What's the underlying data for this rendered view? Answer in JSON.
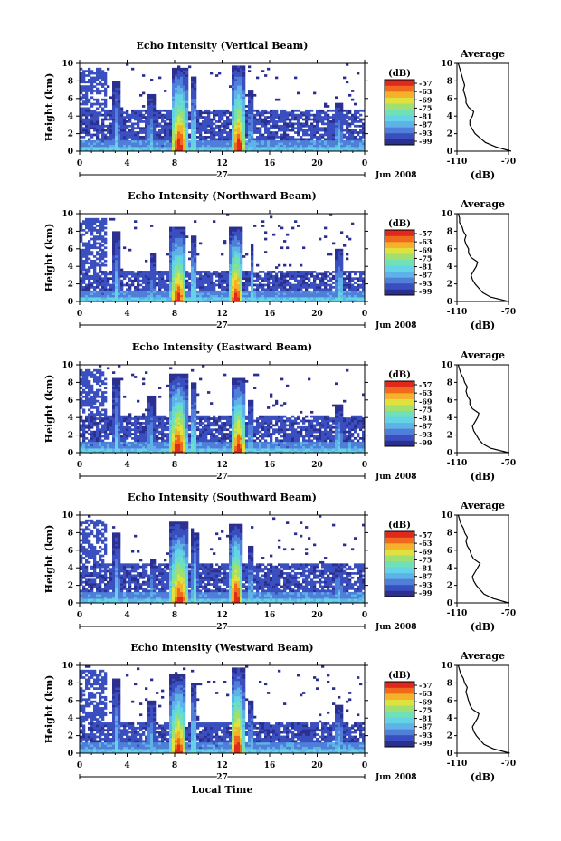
{
  "colors": {
    "colormap": [
      "#2b2f8f",
      "#3a4fbf",
      "#4f7fd8",
      "#5fb2e8",
      "#63d3e6",
      "#6fe0b8",
      "#9fe070",
      "#dfe23e",
      "#f6b12a",
      "#f06a1e",
      "#e0281c"
    ]
  },
  "shared": {
    "xlabel": "Local Time",
    "date_label": "Jun 2008",
    "day_label": "27",
    "colorbar_title": "(dB)",
    "average_title": "Average",
    "average_xlabel": "(dB)"
  },
  "chart_data": [
    {
      "type": "heatmap",
      "title": "Echo Intensity (Vertical Beam)",
      "ylabel": "Height (km)",
      "x_ticks": [
        "0",
        "4",
        "8",
        "12",
        "16",
        "20",
        "0"
      ],
      "y_ticks": [
        "0",
        "2",
        "4",
        "6",
        "8",
        "10"
      ],
      "xlim": [
        0,
        24
      ],
      "ylim": [
        0,
        10
      ],
      "colorbar_ticks": [
        "-57",
        "-63",
        "-69",
        "-75",
        "-81",
        "-87",
        "-93",
        "-99"
      ],
      "average_xticks": [
        "-110",
        "-70"
      ],
      "average_xlim": [
        -110,
        -70
      ],
      "average_profile": [
        [
          0,
          -68
        ],
        [
          0.5,
          -80
        ],
        [
          1,
          -88
        ],
        [
          1.5,
          -92
        ],
        [
          2,
          -96
        ],
        [
          2.5,
          -98
        ],
        [
          3,
          -100
        ],
        [
          3.5,
          -100
        ],
        [
          4,
          -98
        ],
        [
          4.5,
          -97
        ],
        [
          5,
          -101
        ],
        [
          5.5,
          -103
        ],
        [
          6,
          -103
        ],
        [
          6.5,
          -104
        ],
        [
          7,
          -105
        ],
        [
          7.5,
          -104
        ],
        [
          8,
          -105
        ],
        [
          8.5,
          -106
        ],
        [
          9,
          -107
        ],
        [
          9.5,
          -108
        ],
        [
          10,
          -109
        ]
      ],
      "background_band_top_km": 4.8,
      "cells": [
        {
          "center": 3.1,
          "width": 0.5,
          "top": 8.0,
          "peak": 0.4
        },
        {
          "center": 6.0,
          "width": 0.6,
          "top": 6.5,
          "peak": 0.35
        },
        {
          "center": 8.4,
          "width": 1.4,
          "top": 9.6,
          "peak": 1.0
        },
        {
          "center": 9.6,
          "width": 0.5,
          "top": 8.5,
          "peak": 0.5
        },
        {
          "center": 13.4,
          "width": 1.1,
          "top": 9.8,
          "peak": 1.0
        },
        {
          "center": 14.4,
          "width": 0.4,
          "top": 7.0,
          "peak": 0.4
        },
        {
          "center": 21.8,
          "width": 0.7,
          "top": 5.6,
          "peak": 0.4
        }
      ]
    },
    {
      "type": "heatmap",
      "title": "Echo Intensity (Northward Beam)",
      "ylabel": "Height (km)",
      "x_ticks": [
        "0",
        "4",
        "8",
        "12",
        "16",
        "20",
        "0"
      ],
      "y_ticks": [
        "0",
        "2",
        "4",
        "6",
        "8",
        "10"
      ],
      "xlim": [
        0,
        24
      ],
      "ylim": [
        0,
        10
      ],
      "colorbar_ticks": [
        "-57",
        "-63",
        "-69",
        "-75",
        "-81",
        "-87",
        "-93",
        "-99"
      ],
      "average_xticks": [
        "-110",
        "-70"
      ],
      "average_xlim": [
        -110,
        -70
      ],
      "average_profile": [
        [
          0,
          -70
        ],
        [
          0.5,
          -84
        ],
        [
          1,
          -90
        ],
        [
          1.5,
          -93
        ],
        [
          2,
          -96
        ],
        [
          2.5,
          -98
        ],
        [
          3,
          -99
        ],
        [
          3.5,
          -97
        ],
        [
          4,
          -95
        ],
        [
          4.5,
          -94
        ],
        [
          5,
          -99
        ],
        [
          5.5,
          -101
        ],
        [
          6,
          -101
        ],
        [
          6.5,
          -103
        ],
        [
          7,
          -104
        ],
        [
          7.5,
          -103
        ],
        [
          8,
          -105
        ],
        [
          8.5,
          -106
        ],
        [
          9,
          -108
        ],
        [
          9.5,
          -108
        ],
        [
          10,
          -109
        ]
      ],
      "background_band_top_km": 3.6,
      "cells": [
        {
          "center": 3.1,
          "width": 0.5,
          "top": 8.0,
          "peak": 0.4
        },
        {
          "center": 6.1,
          "width": 0.5,
          "top": 5.5,
          "peak": 0.3
        },
        {
          "center": 8.3,
          "width": 1.3,
          "top": 8.6,
          "peak": 0.95
        },
        {
          "center": 9.6,
          "width": 0.5,
          "top": 7.5,
          "peak": 0.5
        },
        {
          "center": 13.2,
          "width": 1.2,
          "top": 8.5,
          "peak": 1.0
        },
        {
          "center": 14.5,
          "width": 0.4,
          "top": 6.5,
          "peak": 0.4
        },
        {
          "center": 21.9,
          "width": 0.7,
          "top": 6.0,
          "peak": 0.45
        }
      ]
    },
    {
      "type": "heatmap",
      "title": "Echo Intensity (Eastward Beam)",
      "ylabel": "Height (km)",
      "x_ticks": [
        "0",
        "4",
        "8",
        "12",
        "16",
        "20",
        "0"
      ],
      "y_ticks": [
        "0",
        "2",
        "4",
        "6",
        "8",
        "10"
      ],
      "xlim": [
        0,
        24
      ],
      "ylim": [
        0,
        10
      ],
      "colorbar_ticks": [
        "-57",
        "-63",
        "-69",
        "-75",
        "-81",
        "-87",
        "-93",
        "-99"
      ],
      "average_xticks": [
        "-110",
        "-70"
      ],
      "average_xlim": [
        -110,
        -70
      ],
      "average_profile": [
        [
          0,
          -70
        ],
        [
          0.5,
          -84
        ],
        [
          1,
          -90
        ],
        [
          1.5,
          -93
        ],
        [
          2,
          -95
        ],
        [
          2.5,
          -97
        ],
        [
          3,
          -98
        ],
        [
          3.5,
          -96
        ],
        [
          4,
          -94
        ],
        [
          4.5,
          -93
        ],
        [
          5,
          -98
        ],
        [
          5.5,
          -100
        ],
        [
          6,
          -100
        ],
        [
          6.5,
          -102
        ],
        [
          7,
          -103
        ],
        [
          7.5,
          -102
        ],
        [
          8,
          -104
        ],
        [
          8.5,
          -105
        ],
        [
          9,
          -107
        ],
        [
          9.5,
          -108
        ],
        [
          10,
          -109
        ]
      ],
      "background_band_top_km": 4.2,
      "cells": [
        {
          "center": 3.1,
          "width": 0.5,
          "top": 8.5,
          "peak": 0.4
        },
        {
          "center": 6.0,
          "width": 0.6,
          "top": 6.5,
          "peak": 0.35
        },
        {
          "center": 8.3,
          "width": 1.5,
          "top": 9.0,
          "peak": 1.0
        },
        {
          "center": 9.6,
          "width": 0.5,
          "top": 8.0,
          "peak": 0.5
        },
        {
          "center": 13.4,
          "width": 1.2,
          "top": 8.5,
          "peak": 1.0
        },
        {
          "center": 14.4,
          "width": 0.4,
          "top": 6.0,
          "peak": 0.4
        },
        {
          "center": 21.8,
          "width": 0.7,
          "top": 5.5,
          "peak": 0.4
        }
      ]
    },
    {
      "type": "heatmap",
      "title": "Echo Intensity (Southward Beam)",
      "ylabel": "Height (km)",
      "x_ticks": [
        "0",
        "4",
        "8",
        "12",
        "16",
        "20",
        "0"
      ],
      "y_ticks": [
        "0",
        "2",
        "4",
        "6",
        "8",
        "10"
      ],
      "xlim": [
        0,
        24
      ],
      "ylim": [
        0,
        10
      ],
      "colorbar_ticks": [
        "-57",
        "-63",
        "-69",
        "-75",
        "-81",
        "-87",
        "-93",
        "-99"
      ],
      "average_xticks": [
        "-110",
        "-70"
      ],
      "average_xlim": [
        -110,
        -70
      ],
      "average_profile": [
        [
          0,
          -70
        ],
        [
          0.5,
          -82
        ],
        [
          1,
          -89
        ],
        [
          1.5,
          -92
        ],
        [
          2,
          -95
        ],
        [
          2.5,
          -97
        ],
        [
          3,
          -98
        ],
        [
          3.5,
          -96
        ],
        [
          4,
          -94
        ],
        [
          4.5,
          -92
        ],
        [
          5,
          -97
        ],
        [
          5.5,
          -99
        ],
        [
          6,
          -100
        ],
        [
          6.5,
          -102
        ],
        [
          7,
          -103
        ],
        [
          7.5,
          -102
        ],
        [
          8,
          -104
        ],
        [
          8.5,
          -105
        ],
        [
          9,
          -107
        ],
        [
          9.5,
          -108
        ],
        [
          10,
          -109
        ]
      ],
      "background_band_top_km": 4.4,
      "cells": [
        {
          "center": 3.1,
          "width": 0.5,
          "top": 8.0,
          "peak": 0.4
        },
        {
          "center": 6.1,
          "width": 0.5,
          "top": 5.0,
          "peak": 0.3
        },
        {
          "center": 8.4,
          "width": 1.6,
          "top": 9.2,
          "peak": 0.95
        },
        {
          "center": 9.7,
          "width": 0.5,
          "top": 8.0,
          "peak": 0.5
        },
        {
          "center": 13.2,
          "width": 1.1,
          "top": 9.0,
          "peak": 1.0
        },
        {
          "center": 14.4,
          "width": 0.4,
          "top": 6.5,
          "peak": 0.4
        },
        {
          "center": 21.8,
          "width": 0.6,
          "top": 4.5,
          "peak": 0.4
        }
      ]
    },
    {
      "type": "heatmap",
      "title": "Echo Intensity (Westward Beam)",
      "ylabel": "Height (km)",
      "x_ticks": [
        "0",
        "4",
        "8",
        "12",
        "16",
        "20",
        "0"
      ],
      "y_ticks": [
        "0",
        "2",
        "4",
        "6",
        "8",
        "10"
      ],
      "xlim": [
        0,
        24
      ],
      "ylim": [
        0,
        10
      ],
      "colorbar_ticks": [
        "-57",
        "-63",
        "-69",
        "-75",
        "-81",
        "-87",
        "-93",
        "-99"
      ],
      "average_xticks": [
        "-110",
        "-70"
      ],
      "average_xlim": [
        -110,
        -70
      ],
      "average_profile": [
        [
          0,
          -69
        ],
        [
          0.5,
          -82
        ],
        [
          1,
          -89
        ],
        [
          1.5,
          -92
        ],
        [
          2,
          -95
        ],
        [
          2.5,
          -97
        ],
        [
          3,
          -98
        ],
        [
          3.5,
          -96
        ],
        [
          4,
          -94
        ],
        [
          4.5,
          -93
        ],
        [
          5,
          -98
        ],
        [
          5.5,
          -100
        ],
        [
          6,
          -101
        ],
        [
          6.5,
          -102
        ],
        [
          7,
          -103
        ],
        [
          7.5,
          -102
        ],
        [
          8,
          -104
        ],
        [
          8.5,
          -105
        ],
        [
          9,
          -107
        ],
        [
          9.5,
          -108
        ],
        [
          10,
          -109
        ]
      ],
      "background_band_top_km": 3.4,
      "cells": [
        {
          "center": 3.1,
          "width": 0.5,
          "top": 8.5,
          "peak": 0.4
        },
        {
          "center": 6.0,
          "width": 0.6,
          "top": 6.0,
          "peak": 0.35
        },
        {
          "center": 8.3,
          "width": 1.4,
          "top": 9.0,
          "peak": 0.95
        },
        {
          "center": 9.6,
          "width": 0.5,
          "top": 8.0,
          "peak": 0.5
        },
        {
          "center": 13.3,
          "width": 1.2,
          "top": 9.8,
          "peak": 1.0
        },
        {
          "center": 14.4,
          "width": 0.4,
          "top": 6.0,
          "peak": 0.4
        },
        {
          "center": 21.8,
          "width": 0.7,
          "top": 5.5,
          "peak": 0.4
        }
      ]
    }
  ]
}
